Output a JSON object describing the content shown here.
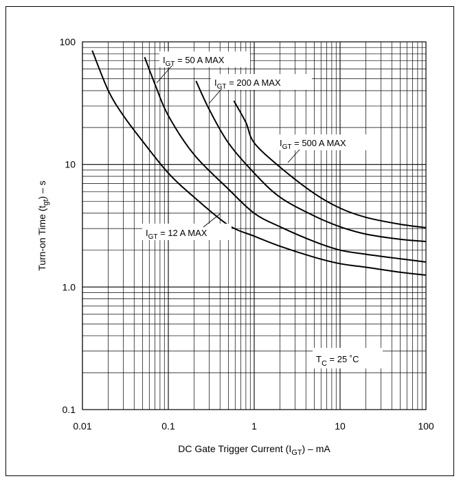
{
  "chart_data": {
    "type": "line",
    "x_scale": "log",
    "y_scale": "log",
    "xlim": [
      0.01,
      100
    ],
    "ylim": [
      0.1,
      100
    ],
    "grid": true,
    "xlabel": {
      "pre": "DC Gate Trigger Current (I",
      "sub": "GT",
      "post": ") – mA"
    },
    "ylabel": {
      "pre": "Turn-on Time (t",
      "sub": "gt",
      "post": ") – s"
    },
    "x_ticks": [
      {
        "value": 0.01,
        "label": "0.01"
      },
      {
        "value": 0.1,
        "label": "0.1"
      },
      {
        "value": 1,
        "label": "1"
      },
      {
        "value": 10,
        "label": "10"
      },
      {
        "value": 100,
        "label": "100"
      }
    ],
    "y_ticks": [
      {
        "value": 0.1,
        "label": "0.1"
      },
      {
        "value": 1,
        "label": "1.0"
      },
      {
        "value": 10,
        "label": "10"
      },
      {
        "value": 100,
        "label": "100"
      }
    ],
    "series": [
      {
        "name": "IGT = 12 A MAX",
        "x": [
          0.013,
          0.02,
          0.03,
          0.05,
          0.1,
          0.2,
          0.5,
          1,
          2,
          5,
          10,
          20,
          50,
          100
        ],
        "y": [
          85,
          40,
          25,
          15.5,
          8.5,
          5.4,
          3.2,
          2.6,
          2.15,
          1.75,
          1.55,
          1.45,
          1.32,
          1.25
        ]
      },
      {
        "name": "IGT = 50 A MAX",
        "x": [
          0.053,
          0.07,
          0.1,
          0.2,
          0.5,
          1,
          2,
          5,
          10,
          20,
          50,
          100
        ],
        "y": [
          75,
          45,
          25,
          12,
          6.3,
          4.0,
          3.1,
          2.35,
          2.0,
          1.85,
          1.7,
          1.6
        ]
      },
      {
        "name": "IGT = 200 A MAX",
        "x": [
          0.21,
          0.3,
          0.5,
          1,
          2,
          5,
          10,
          20,
          50,
          100
        ],
        "y": [
          48,
          28,
          15,
          8.5,
          5.4,
          3.8,
          3.1,
          2.7,
          2.45,
          2.35
        ]
      },
      {
        "name": "IGT = 500 A MAX",
        "x": [
          0.58,
          0.8,
          1,
          2,
          5,
          10,
          20,
          50,
          100
        ],
        "y": [
          33,
          22,
          15,
          9.5,
          5.8,
          4.4,
          3.7,
          3.25,
          3.05
        ]
      }
    ],
    "annotations": [
      {
        "pre": "I",
        "sub": "GT",
        "post": " = 12   A MAX",
        "series": 0
      },
      {
        "pre": "I",
        "sub": "GT",
        "post": " = 50   A MAX",
        "series": 1
      },
      {
        "pre": "I",
        "sub": "GT",
        "post": " = 200   A MAX",
        "series": 2
      },
      {
        "pre": "I",
        "sub": "GT",
        "post": " = 500   A MAX",
        "series": 3
      },
      {
        "pre": "T",
        "sub": "C",
        "post": " = 25 ˚C"
      }
    ]
  }
}
